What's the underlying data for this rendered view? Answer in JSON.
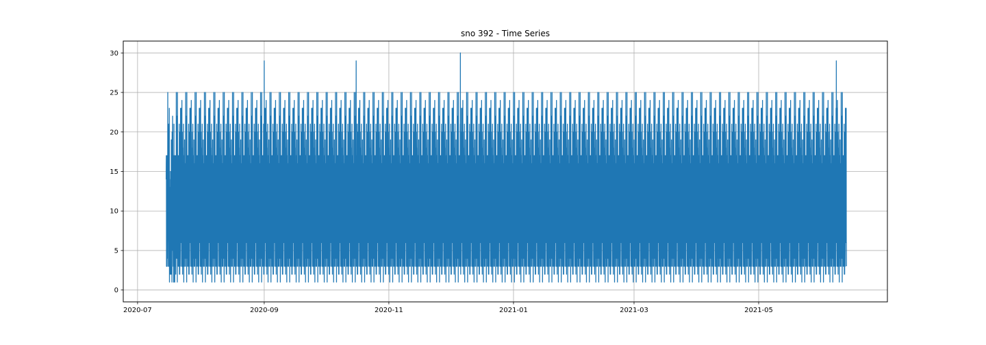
{
  "chart_data": {
    "type": "line",
    "title": "sno 392 - Time Series",
    "xlabel": "",
    "ylabel": "",
    "x_range": [
      "2020-07-15",
      "2021-06-12"
    ],
    "xlim": [
      "2020-06-24",
      "2021-07-03"
    ],
    "ylim": [
      -1.5,
      31.5
    ],
    "x_ticks": [
      "2020-07",
      "2020-09",
      "2020-11",
      "2021-01",
      "2021-03",
      "2021-05"
    ],
    "y_ticks": [
      0,
      5,
      10,
      15,
      20,
      25,
      30
    ],
    "grid": true,
    "legend": "none",
    "observed_min": 0,
    "observed_max": 30,
    "notable_peaks": [
      {
        "x": "2020-09-01",
        "y": 29
      },
      {
        "x": "2020-10-16",
        "y": 29
      },
      {
        "x": "2020-12-06",
        "y": 30
      },
      {
        "x": "2021-06-08",
        "y": 29
      }
    ],
    "series": [
      {
        "color": "#1f77b4",
        "values": []
      }
    ]
  },
  "colors": {
    "series": "#1f77b4",
    "grid": "#b0b0b0",
    "axes": "#000000",
    "background": "#ffffff"
  }
}
